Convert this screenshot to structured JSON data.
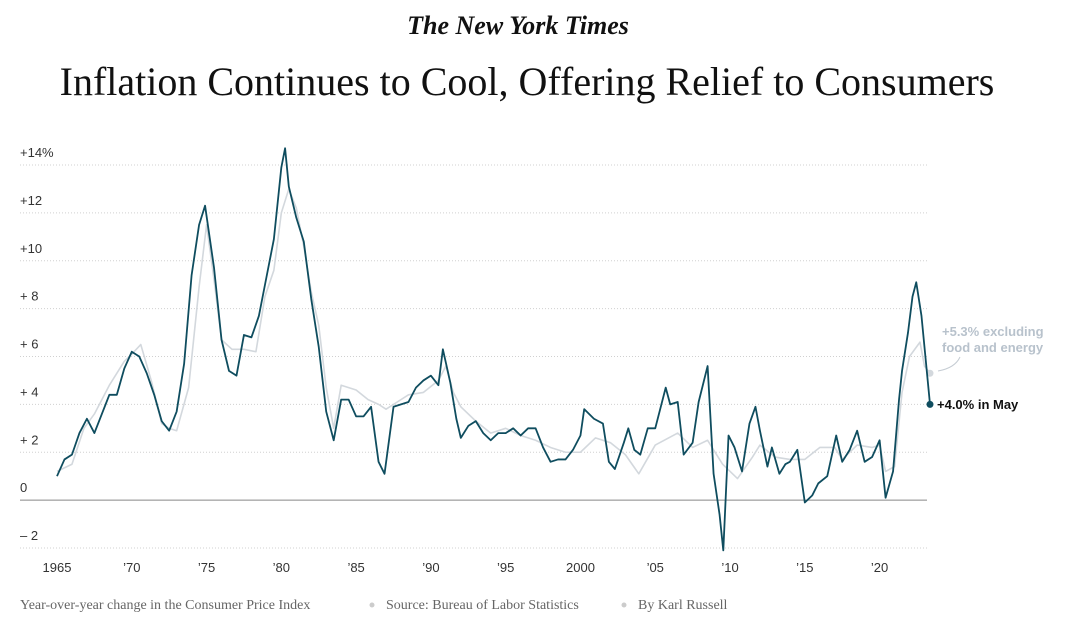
{
  "chart_data": {
    "type": "line",
    "brand": "The New York Times",
    "title": "Inflation Continues to Cool, Offering Relief to Consumers",
    "footer": [
      "Year-over-year change in the Consumer Price Index",
      "Source: Bureau of Labor Statistics",
      "By Karl Russell"
    ],
    "annotations": [
      "+5.3% excluding",
      "food and energy",
      "+4.0% in May"
    ],
    "xlim": [
      1965,
      2023.37
    ],
    "xticks": [
      1965,
      {
        "value": 1970,
        "label": "’70"
      },
      {
        "value": 1975,
        "label": "’75"
      },
      {
        "value": 1980,
        "label": "’80"
      },
      {
        "value": 1985,
        "label": "’85"
      },
      {
        "value": 1990,
        "label": "’90"
      },
      {
        "value": 1995,
        "label": "’95"
      },
      2000,
      {
        "value": 2005,
        "label": "’05"
      },
      {
        "value": 2010,
        "label": "’10"
      },
      {
        "value": 2015,
        "label": "’15"
      },
      {
        "value": 2020,
        "label": "’20"
      }
    ],
    "ylim": [
      -2,
      14
    ],
    "yticks": [
      {
        "value": 14,
        "label": "+14%"
      },
      {
        "value": 12,
        "label": "+12"
      },
      {
        "value": 10,
        "label": "+10"
      },
      {
        "value": 8,
        "label": "+ 8"
      },
      {
        "value": 6,
        "label": "+ 6"
      },
      {
        "value": 4,
        "label": "+ 4"
      },
      {
        "value": 2,
        "label": "+ 2"
      },
      0,
      {
        "value": -2,
        "label": "– 2"
      }
    ],
    "grid": true,
    "series": [
      {
        "color": "#d3d8dd",
        "x": [
          1965.0,
          1966.0,
          1966.8,
          1967.5,
          1968.5,
          1969.5,
          1970.0,
          1970.6,
          1971.3,
          1972.0,
          1972.5,
          1973.0,
          1973.8,
          1974.5,
          1975.0,
          1975.5,
          1976.0,
          1976.7,
          1977.5,
          1978.3,
          1978.9,
          1979.5,
          1980.0,
          1980.5,
          1981.0,
          1981.5,
          1982.0,
          1982.5,
          1983.0,
          1983.5,
          1984.0,
          1985.0,
          1985.8,
          1986.5,
          1987.0,
          1987.5,
          1988.5,
          1989.5,
          1990.5,
          1991.0,
          1991.5,
          1992.0,
          1993.0,
          1994.0,
          1995.0,
          1996.0,
          1997.0,
          1998.0,
          1999.0,
          2000.0,
          2001.0,
          2002.0,
          2003.0,
          2003.9,
          2005.0,
          2006.5,
          2007.5,
          2008.5,
          2009.5,
          2010.5,
          2011.5,
          2012.0,
          2013.0,
          2014.0,
          2015.0,
          2016.0,
          2017.0,
          2017.5,
          2018.5,
          2019.5,
          2020.0,
          2020.4,
          2021.0,
          2021.5,
          2022.0,
          2022.7,
          2023.0,
          2023.37
        ],
        "values": [
          1.2,
          1.5,
          3.0,
          3.6,
          4.8,
          5.8,
          6.1,
          6.5,
          5.0,
          3.2,
          3.0,
          2.9,
          4.7,
          8.9,
          11.5,
          9.2,
          6.7,
          6.3,
          6.3,
          6.2,
          8.5,
          9.6,
          12.0,
          13.0,
          12.2,
          10.6,
          8.7,
          7.3,
          4.7,
          3.0,
          4.8,
          4.6,
          4.2,
          4.0,
          3.8,
          4.0,
          4.4,
          4.5,
          5.0,
          5.6,
          4.5,
          3.9,
          3.3,
          2.8,
          3.0,
          2.7,
          2.5,
          2.2,
          2.0,
          2.0,
          2.6,
          2.4,
          1.9,
          1.1,
          2.3,
          2.8,
          2.2,
          2.5,
          1.5,
          0.9,
          1.8,
          2.3,
          1.8,
          1.7,
          1.7,
          2.2,
          2.2,
          1.7,
          2.3,
          2.2,
          2.3,
          1.2,
          1.4,
          4.5,
          6.0,
          6.6,
          5.6,
          5.3
        ]
      },
      {
        "color": "#0f4d5f",
        "x": [
          1965.0,
          1965.5,
          1966.0,
          1966.5,
          1967.0,
          1967.5,
          1968.0,
          1968.5,
          1969.0,
          1969.5,
          1970.0,
          1970.5,
          1971.0,
          1971.5,
          1972.0,
          1972.5,
          1973.0,
          1973.5,
          1974.0,
          1974.5,
          1974.9,
          1975.5,
          1976.0,
          1976.5,
          1977.0,
          1977.5,
          1978.0,
          1978.5,
          1979.0,
          1979.5,
          1980.0,
          1980.25,
          1980.5,
          1981.0,
          1981.5,
          1982.0,
          1982.5,
          1983.0,
          1983.5,
          1984.0,
          1984.5,
          1985.0,
          1985.5,
          1986.0,
          1986.5,
          1986.9,
          1987.5,
          1988.0,
          1988.5,
          1989.0,
          1989.5,
          1990.0,
          1990.5,
          1990.8,
          1991.3,
          1991.7,
          1992.0,
          1992.5,
          1993.0,
          1993.5,
          1994.0,
          1994.5,
          1995.0,
          1995.5,
          1996.0,
          1996.5,
          1997.0,
          1997.5,
          1998.0,
          1998.5,
          1999.0,
          1999.5,
          2000.0,
          2000.25,
          2000.9,
          2001.5,
          2001.9,
          2002.3,
          2002.9,
          2003.2,
          2003.6,
          2004.0,
          2004.5,
          2005.0,
          2005.7,
          2006.0,
          2006.5,
          2006.9,
          2007.5,
          2007.9,
          2008.5,
          2008.9,
          2009.3,
          2009.55,
          2009.9,
          2010.3,
          2010.8,
          2011.3,
          2011.7,
          2012.0,
          2012.5,
          2012.8,
          2013.3,
          2013.7,
          2014.0,
          2014.5,
          2015.0,
          2015.5,
          2015.9,
          2016.5,
          2017.1,
          2017.5,
          2018.0,
          2018.5,
          2019.0,
          2019.5,
          2020.0,
          2020.4,
          2020.9,
          2021.3,
          2021.5,
          2021.9,
          2022.2,
          2022.45,
          2022.8,
          2023.0,
          2023.37
        ],
        "values": [
          1.0,
          1.7,
          1.9,
          2.8,
          3.4,
          2.8,
          3.6,
          4.4,
          4.4,
          5.5,
          6.2,
          6.0,
          5.3,
          4.4,
          3.3,
          2.9,
          3.7,
          5.7,
          9.4,
          11.5,
          12.3,
          9.7,
          6.7,
          5.4,
          5.2,
          6.9,
          6.8,
          7.7,
          9.3,
          10.9,
          13.9,
          14.7,
          13.1,
          11.8,
          10.8,
          8.4,
          6.4,
          3.7,
          2.5,
          4.2,
          4.2,
          3.5,
          3.5,
          3.9,
          1.6,
          1.1,
          3.9,
          4.0,
          4.1,
          4.7,
          5.0,
          5.2,
          4.8,
          6.3,
          4.9,
          3.4,
          2.6,
          3.1,
          3.3,
          2.8,
          2.5,
          2.8,
          2.8,
          3.0,
          2.7,
          3.0,
          3.0,
          2.2,
          1.6,
          1.7,
          1.7,
          2.1,
          2.7,
          3.8,
          3.4,
          3.2,
          1.6,
          1.3,
          2.4,
          3.0,
          2.1,
          1.9,
          3.0,
          3.0,
          4.7,
          4.0,
          4.1,
          1.9,
          2.4,
          4.1,
          5.6,
          1.1,
          -0.6,
          -2.1,
          2.7,
          2.2,
          1.2,
          3.2,
          3.9,
          2.9,
          1.4,
          2.2,
          1.1,
          1.5,
          1.6,
          2.1,
          -0.1,
          0.2,
          0.7,
          1.0,
          2.7,
          1.6,
          2.1,
          2.9,
          1.6,
          1.8,
          2.5,
          0.1,
          1.2,
          4.2,
          5.4,
          7.0,
          8.5,
          9.1,
          7.7,
          6.4,
          4.0
        ]
      }
    ]
  }
}
